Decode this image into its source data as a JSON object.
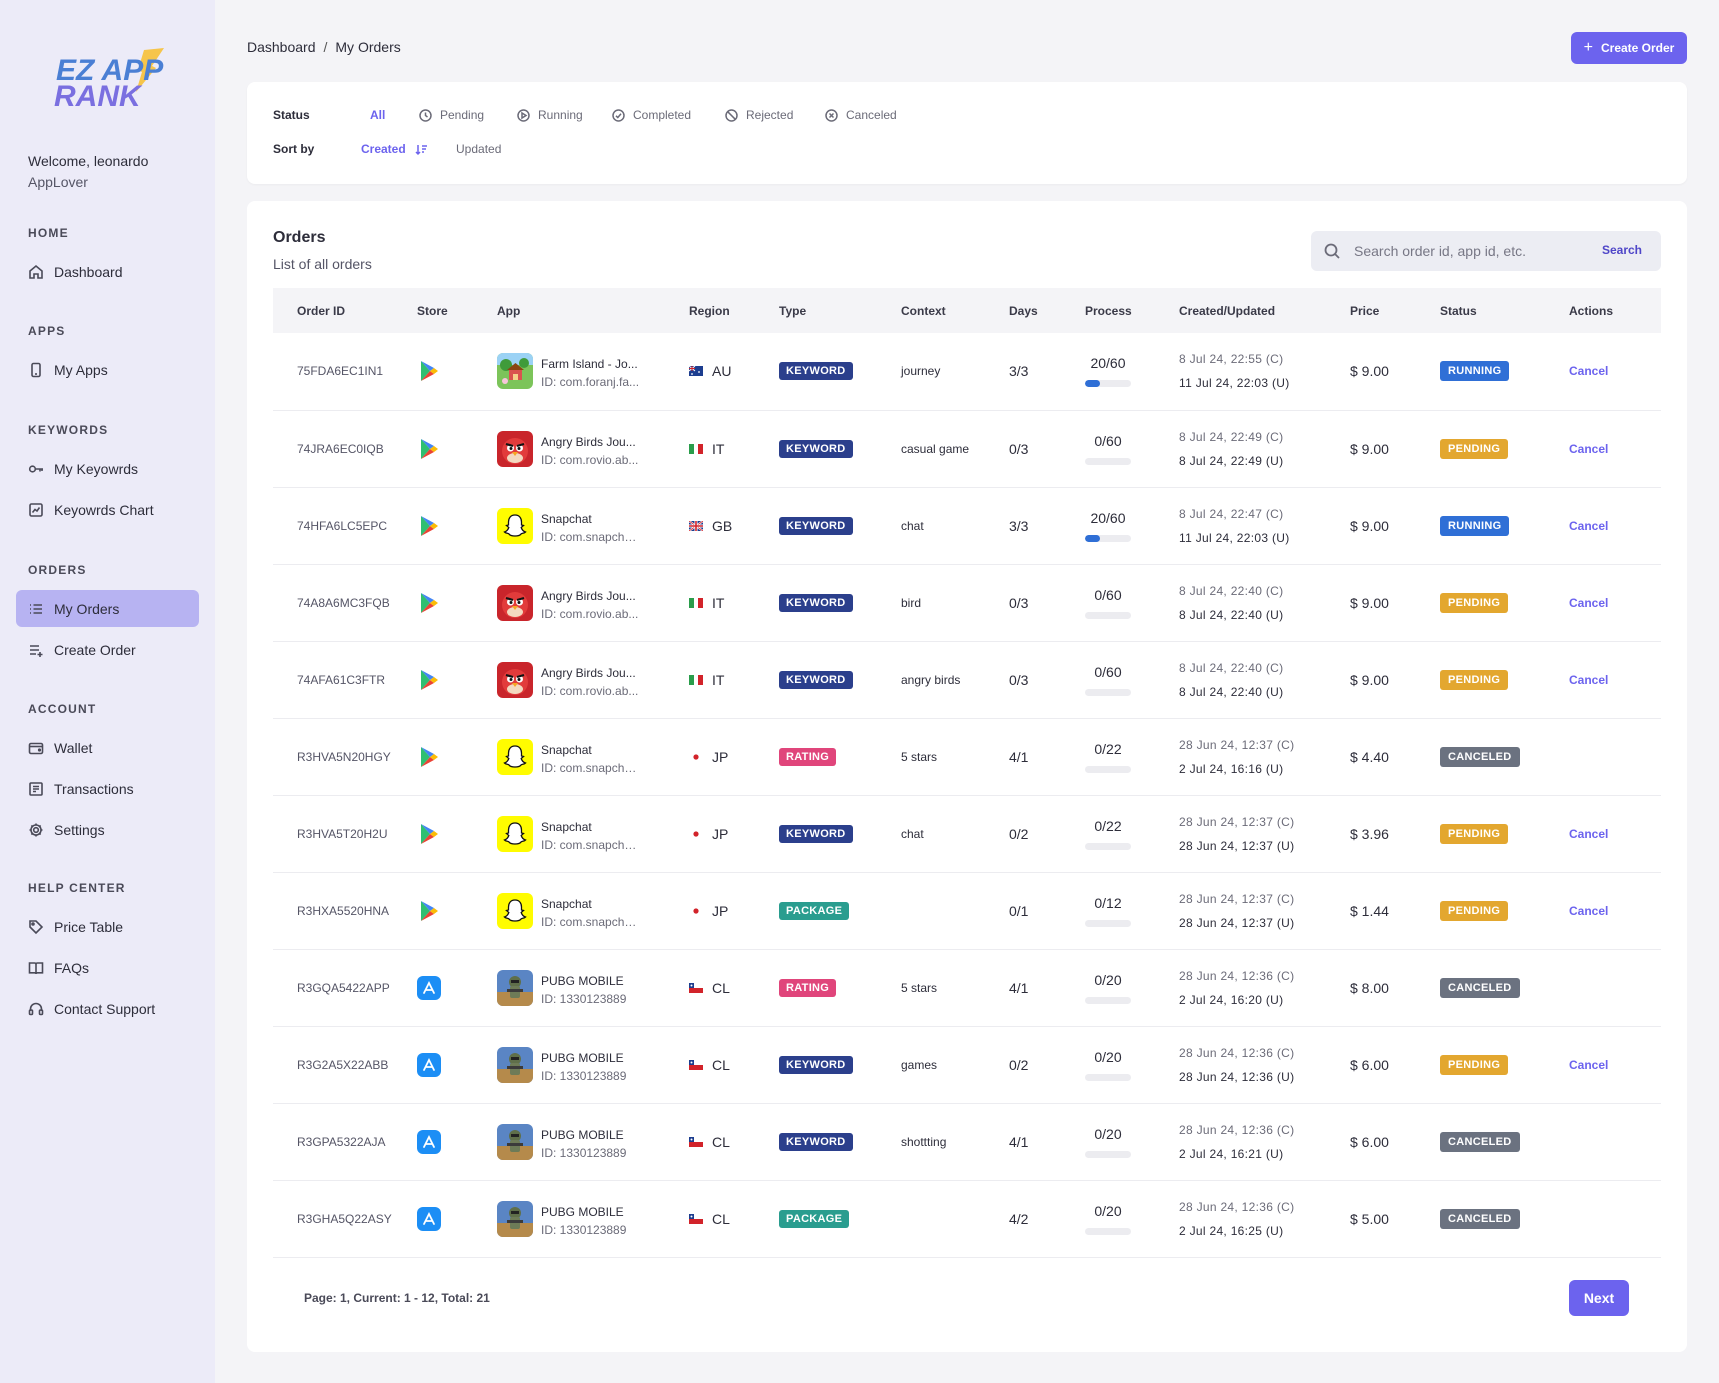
{
  "brand": {
    "logo_text_top": "EZ APP",
    "logo_text_bottom": "RANK",
    "accent": "#6c63ee"
  },
  "user": {
    "welcome": "Welcome, leonardo",
    "role": "AppLover"
  },
  "sidebar": {
    "sections": [
      {
        "title": "HOME",
        "items": [
          {
            "label": "Dashboard",
            "icon": "home-icon"
          }
        ]
      },
      {
        "title": "APPS",
        "items": [
          {
            "label": "My Apps",
            "icon": "phone-icon"
          }
        ]
      },
      {
        "title": "KEYWORDS",
        "items": [
          {
            "label": "My Keyowrds",
            "icon": "key-icon"
          },
          {
            "label": "Keyowrds Chart",
            "icon": "chart-icon"
          }
        ]
      },
      {
        "title": "ORDERS",
        "items": [
          {
            "label": "My Orders",
            "icon": "list-icon",
            "active": true
          },
          {
            "label": "Create Order",
            "icon": "list-add-icon"
          }
        ]
      },
      {
        "title": "ACCOUNT",
        "items": [
          {
            "label": "Wallet",
            "icon": "wallet-icon"
          },
          {
            "label": "Transactions",
            "icon": "receipt-icon"
          },
          {
            "label": "Settings",
            "icon": "gear-icon"
          }
        ]
      },
      {
        "title": "HELP CENTER",
        "items": [
          {
            "label": "Price Table",
            "icon": "tag-icon"
          },
          {
            "label": "FAQs",
            "icon": "book-icon"
          },
          {
            "label": "Contact Support",
            "icon": "headset-icon"
          }
        ]
      }
    ]
  },
  "breadcrumb": {
    "root": "Dashboard",
    "sep": "/",
    "current": "My Orders"
  },
  "create_order": "Create Order",
  "filters": {
    "status_label": "Status",
    "status_options": [
      "All",
      "Pending",
      "Running",
      "Completed",
      "Rejected",
      "Canceled"
    ],
    "status_active": "All",
    "sort_label": "Sort by",
    "sort_options": [
      "Created",
      "Updated"
    ],
    "sort_active": "Created"
  },
  "orders": {
    "title": "Orders",
    "subtitle": "List of all orders",
    "search_placeholder": "Search order id, app id, etc.",
    "search_button": "Search",
    "columns": [
      "Order ID",
      "Store",
      "App",
      "Region",
      "Type",
      "Context",
      "Days",
      "Process",
      "Created/Updated",
      "Price",
      "Status",
      "Actions"
    ],
    "rows": [
      {
        "id": "75FDA6EC1IN1",
        "store": "google-play",
        "app": "Farm Island - Jo...",
        "app_id": "ID: com.foranj.fa...",
        "app_icon": "farm",
        "region": "AU",
        "type": "KEYWORD",
        "context": "journey",
        "days": "3/3",
        "process": "20/60",
        "progress": 0.33,
        "created": "8 Jul 24, 22:55 (C)",
        "updated": "11 Jul 24, 22:03 (U)",
        "price": "$ 9.00",
        "status": "RUNNING",
        "action": "Cancel"
      },
      {
        "id": "74JRA6EC0IQB",
        "store": "google-play",
        "app": "Angry Birds Jou...",
        "app_id": "ID: com.rovio.ab...",
        "app_icon": "angry",
        "region": "IT",
        "type": "KEYWORD",
        "context": "casual game",
        "days": "0/3",
        "process": "0/60",
        "progress": 0,
        "created": "8 Jul 24, 22:49 (C)",
        "updated": "8 Jul 24, 22:49 (U)",
        "price": "$ 9.00",
        "status": "PENDING",
        "action": "Cancel"
      },
      {
        "id": "74HFA6LC5EPC",
        "store": "google-play",
        "app": "Snapchat",
        "app_id": "ID: com.snapcha...",
        "app_icon": "snap",
        "region": "GB",
        "type": "KEYWORD",
        "context": "chat",
        "days": "3/3",
        "process": "20/60",
        "progress": 0.33,
        "created": "8 Jul 24, 22:47 (C)",
        "updated": "11 Jul 24, 22:03 (U)",
        "price": "$ 9.00",
        "status": "RUNNING",
        "action": "Cancel"
      },
      {
        "id": "74A8A6MC3FQB",
        "store": "google-play",
        "app": "Angry Birds Jou...",
        "app_id": "ID: com.rovio.ab...",
        "app_icon": "angry",
        "region": "IT",
        "type": "KEYWORD",
        "context": "bird",
        "days": "0/3",
        "process": "0/60",
        "progress": 0,
        "created": "8 Jul 24, 22:40 (C)",
        "updated": "8 Jul 24, 22:40 (U)",
        "price": "$ 9.00",
        "status": "PENDING",
        "action": "Cancel"
      },
      {
        "id": "74AFA61C3FTR",
        "store": "google-play",
        "app": "Angry Birds Jou...",
        "app_id": "ID: com.rovio.ab...",
        "app_icon": "angry",
        "region": "IT",
        "type": "KEYWORD",
        "context": "angry birds",
        "days": "0/3",
        "process": "0/60",
        "progress": 0,
        "created": "8 Jul 24, 22:40 (C)",
        "updated": "8 Jul 24, 22:40 (U)",
        "price": "$ 9.00",
        "status": "PENDING",
        "action": "Cancel"
      },
      {
        "id": "R3HVA5N20HGY",
        "store": "google-play",
        "app": "Snapchat",
        "app_id": "ID: com.snapcha...",
        "app_icon": "snap",
        "region": "JP",
        "type": "RATING",
        "context": "5 stars",
        "days": "4/1",
        "process": "0/22",
        "progress": 0,
        "created": "28 Jun 24, 12:37 (C)",
        "updated": "2 Jul 24, 16:16 (U)",
        "price": "$ 4.40",
        "status": "CANCELED",
        "action": ""
      },
      {
        "id": "R3HVA5T20H2U",
        "store": "google-play",
        "app": "Snapchat",
        "app_id": "ID: com.snapcha...",
        "app_icon": "snap",
        "region": "JP",
        "type": "KEYWORD",
        "context": "chat",
        "days": "0/2",
        "process": "0/22",
        "progress": 0,
        "created": "28 Jun 24, 12:37 (C)",
        "updated": "28 Jun 24, 12:37 (U)",
        "price": "$ 3.96",
        "status": "PENDING",
        "action": "Cancel"
      },
      {
        "id": "R3HXA5520HNA",
        "store": "google-play",
        "app": "Snapchat",
        "app_id": "ID: com.snapcha...",
        "app_icon": "snap",
        "region": "JP",
        "type": "PACKAGE",
        "context": "",
        "days": "0/1",
        "process": "0/12",
        "progress": 0,
        "created": "28 Jun 24, 12:37 (C)",
        "updated": "28 Jun 24, 12:37 (U)",
        "price": "$ 1.44",
        "status": "PENDING",
        "action": "Cancel"
      },
      {
        "id": "R3GQA5422APP",
        "store": "app-store",
        "app": "PUBG MOBILE",
        "app_id": "ID: 1330123889",
        "app_icon": "pubg",
        "region": "CL",
        "type": "RATING",
        "context": "5 stars",
        "days": "4/1",
        "process": "0/20",
        "progress": 0,
        "created": "28 Jun 24, 12:36 (C)",
        "updated": "2 Jul 24, 16:20 (U)",
        "price": "$ 8.00",
        "status": "CANCELED",
        "action": ""
      },
      {
        "id": "R3G2A5X22ABB",
        "store": "app-store",
        "app": "PUBG MOBILE",
        "app_id": "ID: 1330123889",
        "app_icon": "pubg",
        "region": "CL",
        "type": "KEYWORD",
        "context": "games",
        "days": "0/2",
        "process": "0/20",
        "progress": 0,
        "created": "28 Jun 24, 12:36 (C)",
        "updated": "28 Jun 24, 12:36 (U)",
        "price": "$ 6.00",
        "status": "PENDING",
        "action": "Cancel"
      },
      {
        "id": "R3GPA5322AJA",
        "store": "app-store",
        "app": "PUBG MOBILE",
        "app_id": "ID: 1330123889",
        "app_icon": "pubg",
        "region": "CL",
        "type": "KEYWORD",
        "context": "shottting",
        "days": "4/1",
        "process": "0/20",
        "progress": 0,
        "created": "28 Jun 24, 12:36 (C)",
        "updated": "2 Jul 24, 16:21 (U)",
        "price": "$ 6.00",
        "status": "CANCELED",
        "action": ""
      },
      {
        "id": "R3GHA5Q22ASY",
        "store": "app-store",
        "app": "PUBG MOBILE",
        "app_id": "ID: 1330123889",
        "app_icon": "pubg",
        "region": "CL",
        "type": "PACKAGE",
        "context": "",
        "days": "4/2",
        "process": "0/20",
        "progress": 0,
        "created": "28 Jun 24, 12:36 (C)",
        "updated": "2 Jul 24, 16:25 (U)",
        "price": "$ 5.00",
        "status": "CANCELED",
        "action": ""
      }
    ],
    "pagination": "Page: 1, Current: 1 - 12, Total: 21",
    "next": "Next"
  },
  "colors": {
    "KEYWORD": "#2b3f8c",
    "RATING": "#e0457b",
    "PACKAGE": "#2a9d8f",
    "RUNNING": "#2f6fd6",
    "PENDING": "#e3a72f",
    "CANCELED": "#6b7280"
  }
}
